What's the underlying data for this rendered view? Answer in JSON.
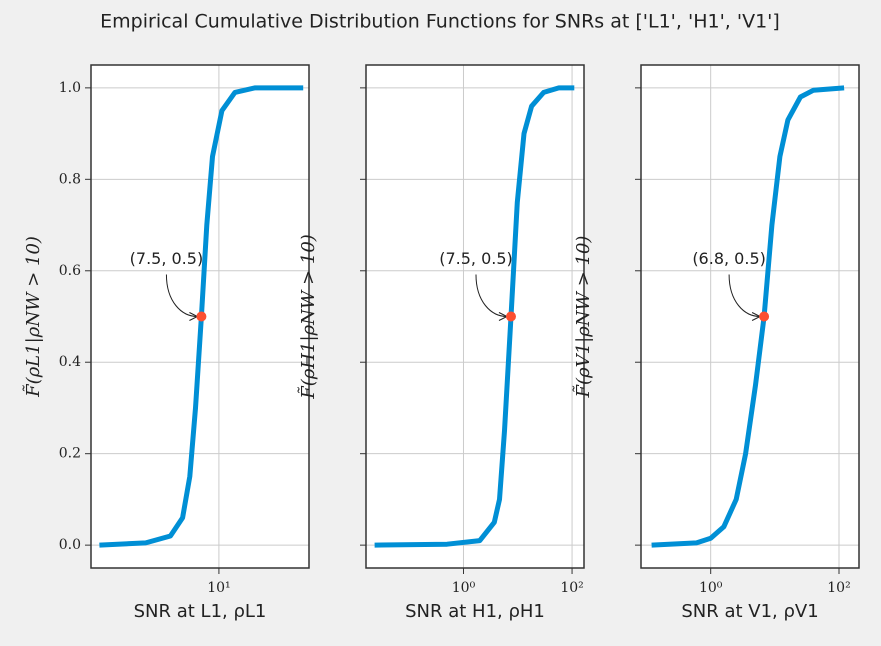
{
  "title": "Empirical Cumulative Distribution Functions for SNRs at ['L1', 'H1', 'V1']",
  "chart_data": [
    {
      "type": "line",
      "xlabel": "SNR at L1, ρL1",
      "ylabel": "F̃(ρL1|ρNW > 10)",
      "xscale": "log",
      "grid": true,
      "xlim": [
        1.22,
        44
      ],
      "ylim": [
        -0.05,
        1.05
      ],
      "xticks": [
        {
          "value": 10,
          "label": "10¹"
        }
      ],
      "yticks": [
        {
          "value": 0,
          "label": "0.0"
        },
        0.2,
        0.4,
        0.6,
        0.8,
        {
          "value": 1,
          "label": "1.0"
        }
      ],
      "ytick_labels": true,
      "series": [
        {
          "color": "#008fd5",
          "x": [
            1.4,
            3.0,
            4.5,
            5.5,
            6.2,
            6.8,
            7.5,
            8.2,
            9.0,
            10.5,
            13,
            18,
            40
          ],
          "values": [
            0,
            0.005,
            0.02,
            0.06,
            0.15,
            0.3,
            0.5,
            0.7,
            0.85,
            0.95,
            0.99,
            1.0,
            1.0
          ]
        }
      ],
      "annotation": {
        "text": "(7.5, 0.5)",
        "x": 7.5,
        "y": 0.5,
        "color": "#fc4f30"
      }
    },
    {
      "type": "line",
      "xlabel": "SNR at H1, ρH1",
      "ylabel": "F̃(ρH1|ρNW > 10)",
      "xscale": "log",
      "grid": true,
      "xlim": [
        0.016,
        166
      ],
      "ylim": [
        -0.05,
        1.05
      ],
      "xticks": [
        {
          "value": 1,
          "label": "10⁰"
        },
        {
          "value": 100,
          "label": "10²"
        }
      ],
      "yticks": [
        {
          "value": 0,
          "label": "0.0"
        },
        0.2,
        0.4,
        0.6,
        0.8,
        {
          "value": 1,
          "label": "1.0"
        }
      ],
      "ytick_labels": false,
      "series": [
        {
          "color": "#008fd5",
          "x": [
            0.023,
            0.5,
            2,
            3.7,
            4.6,
            5.7,
            7.5,
            9.8,
            13,
            18,
            30,
            57,
            110
          ],
          "values": [
            0,
            0.002,
            0.01,
            0.05,
            0.1,
            0.25,
            0.5,
            0.75,
            0.9,
            0.96,
            0.99,
            1.0,
            1.0
          ]
        }
      ],
      "annotation": {
        "text": "(7.5, 0.5)",
        "x": 7.5,
        "y": 0.5,
        "color": "#fc4f30"
      }
    },
    {
      "type": "line",
      "xlabel": "SNR at V1, ρV1",
      "ylabel": "F̃(ρV1|ρNW > 10)",
      "xscale": "log",
      "grid": true,
      "xlim": [
        0.082,
        205
      ],
      "ylim": [
        -0.05,
        1.05
      ],
      "xticks": [
        {
          "value": 1,
          "label": "10⁰"
        },
        {
          "value": 100,
          "label": "10²"
        }
      ],
      "yticks": [
        {
          "value": 0,
          "label": "0.0"
        },
        0.2,
        0.4,
        0.6,
        0.8,
        {
          "value": 1,
          "label": "1.0"
        }
      ],
      "ytick_labels": false,
      "series": [
        {
          "color": "#008fd5",
          "x": [
            0.12,
            0.6,
            1.0,
            1.6,
            2.5,
            3.5,
            5,
            6.8,
            9,
            12,
            16,
            25,
            40,
            120
          ],
          "values": [
            0,
            0.005,
            0.015,
            0.04,
            0.1,
            0.2,
            0.35,
            0.5,
            0.7,
            0.85,
            0.93,
            0.98,
            0.995,
            1.0
          ]
        }
      ],
      "annotation": {
        "text": "(6.8, 0.5)",
        "x": 6.8,
        "y": 0.5,
        "color": "#fc4f30"
      }
    }
  ]
}
